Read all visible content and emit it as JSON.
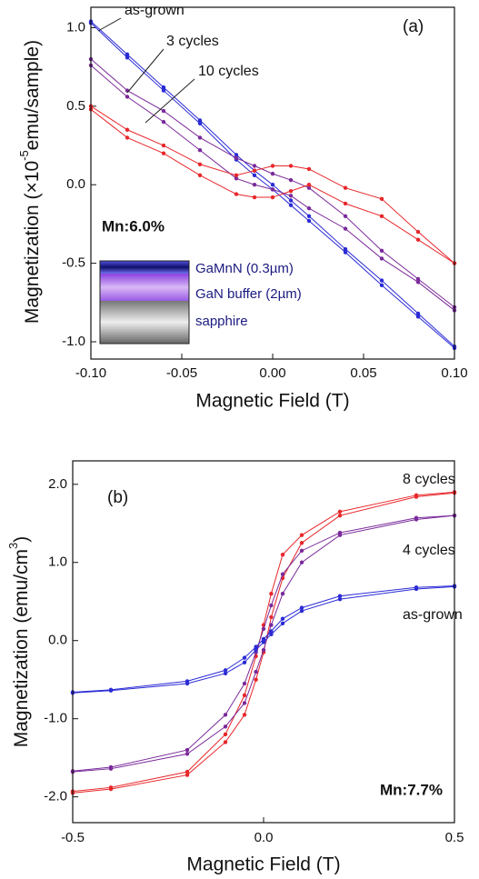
{
  "chart_data": [
    {
      "type": "line",
      "panel_label": "(a)",
      "x_label": "Magnetic Field (T)",
      "y_label": "Magnetization (×10",
      "y_label_sup": "-5",
      "y_label_end": "emu/sample)",
      "xlim": [
        -0.1,
        0.1
      ],
      "ylim": [
        -1.11,
        1.13
      ],
      "xticks": [
        {
          "value": -0.1,
          "label": "-0.10"
        },
        -0.05,
        {
          "value": 0,
          "label": "0.00"
        },
        0.05,
        {
          "value": 0.1,
          "label": "0.10"
        }
      ],
      "yticks": [
        {
          "value": -1,
          "label": "-1.0"
        },
        -0.5,
        {
          "value": 0,
          "label": "0.0"
        },
        0.5,
        {
          "value": 1,
          "label": "1.0"
        }
      ],
      "note": "Mn:6.0%",
      "layers": [
        "GaMnN (0.3µm)",
        "GaN buffer (2µm)",
        "sapphire"
      ],
      "series": [
        {
          "name": "as-grown",
          "color": "#2b2bd6",
          "x": [
            -0.1,
            -0.08,
            -0.06,
            -0.04,
            -0.02,
            -0.01,
            0,
            0.01,
            0.02,
            0.04,
            0.06,
            0.08,
            0.1
          ],
          "branches": [
            [
              1.04,
              0.83,
              0.62,
              0.41,
              0.19,
              0.09,
              0.0,
              -0.1,
              -0.2,
              -0.41,
              -0.61,
              -0.82,
              -1.03
            ],
            [
              1.03,
              0.81,
              0.6,
              0.39,
              0.16,
              0.06,
              -0.03,
              -0.13,
              -0.23,
              -0.43,
              -0.64,
              -0.84,
              -1.04
            ]
          ]
        },
        {
          "name": "3 cycles",
          "color": "#7a2a9a",
          "x": [
            -0.1,
            -0.08,
            -0.06,
            -0.04,
            -0.02,
            -0.01,
            0,
            0.01,
            0.02,
            0.04,
            0.06,
            0.08,
            0.1
          ],
          "branches": [
            [
              0.8,
              0.6,
              0.47,
              0.3,
              0.17,
              0.12,
              0.07,
              0.03,
              -0.02,
              -0.2,
              -0.42,
              -0.6,
              -0.78
            ],
            [
              0.76,
              0.56,
              0.4,
              0.22,
              0.04,
              0.0,
              -0.03,
              -0.07,
              -0.15,
              -0.28,
              -0.47,
              -0.62,
              -0.8
            ]
          ]
        },
        {
          "name": "10 cycles",
          "color": "#e8262a",
          "x": [
            -0.1,
            -0.08,
            -0.06,
            -0.04,
            -0.02,
            -0.01,
            0,
            0.01,
            0.02,
            0.04,
            0.06,
            0.08,
            0.1
          ],
          "branches": [
            [
              0.5,
              0.35,
              0.25,
              0.13,
              0.06,
              0.09,
              0.12,
              0.12,
              0.1,
              -0.02,
              -0.09,
              -0.3,
              -0.5
            ],
            [
              0.48,
              0.3,
              0.2,
              0.06,
              -0.06,
              -0.08,
              -0.08,
              -0.04,
              0.0,
              -0.12,
              -0.2,
              -0.35,
              -0.5
            ]
          ]
        }
      ]
    },
    {
      "type": "line",
      "panel_label": "(b)",
      "x_label": "Magnetic Field (T)",
      "y_label": "Magnetization (emu/cm",
      "y_label_sup": "3",
      "y_label_end": ")",
      "xlim": [
        -0.5,
        0.5
      ],
      "ylim": [
        -2.33,
        2.3
      ],
      "xticks": [
        -0.5,
        {
          "value": 0,
          "label": "0.0"
        },
        0.5
      ],
      "yticks": [
        {
          "value": -2,
          "label": "-2.0"
        },
        {
          "value": -1,
          "label": "-1.0"
        },
        {
          "value": 0,
          "label": "0.0"
        },
        {
          "value": 1,
          "label": "1.0"
        },
        {
          "value": 2,
          "label": "2.0"
        }
      ],
      "note": "Mn:7.7%",
      "series": [
        {
          "name": "8 cycles",
          "color": "#e8262a",
          "x": [
            -0.5,
            -0.4,
            -0.2,
            -0.1,
            -0.05,
            -0.02,
            0,
            0.02,
            0.05,
            0.1,
            0.2,
            0.4,
            0.5
          ],
          "branches": [
            [
              -1.93,
              -1.88,
              -1.68,
              -1.2,
              -0.7,
              -0.2,
              0.2,
              0.6,
              1.1,
              1.35,
              1.65,
              1.86,
              1.9
            ],
            [
              -1.95,
              -1.9,
              -1.72,
              -1.3,
              -0.95,
              -0.5,
              -0.15,
              0.3,
              0.8,
              1.25,
              1.6,
              1.84,
              1.89
            ]
          ]
        },
        {
          "name": "4 cycles",
          "color": "#7a2a9a",
          "x": [
            -0.5,
            -0.4,
            -0.2,
            -0.1,
            -0.05,
            -0.02,
            0,
            0.02,
            0.05,
            0.1,
            0.2,
            0.4,
            0.5
          ],
          "branches": [
            [
              -1.67,
              -1.62,
              -1.4,
              -0.95,
              -0.55,
              -0.15,
              0.15,
              0.45,
              0.85,
              1.15,
              1.38,
              1.57,
              1.6
            ],
            [
              -1.68,
              -1.64,
              -1.45,
              -1.1,
              -0.8,
              -0.4,
              -0.12,
              0.2,
              0.6,
              1.0,
              1.35,
              1.55,
              1.6
            ]
          ]
        },
        {
          "name": "as-grown",
          "color": "#2b2bd6",
          "x": [
            -0.5,
            -0.4,
            -0.2,
            -0.1,
            -0.05,
            -0.02,
            0,
            0.02,
            0.05,
            0.1,
            0.2,
            0.4,
            0.5
          ],
          "branches": [
            [
              -0.66,
              -0.63,
              -0.52,
              -0.38,
              -0.22,
              -0.08,
              0.02,
              0.12,
              0.28,
              0.42,
              0.57,
              0.68,
              0.7
            ],
            [
              -0.67,
              -0.64,
              -0.55,
              -0.42,
              -0.28,
              -0.12,
              -0.02,
              0.08,
              0.22,
              0.38,
              0.53,
              0.66,
              0.69
            ]
          ]
        }
      ]
    }
  ]
}
